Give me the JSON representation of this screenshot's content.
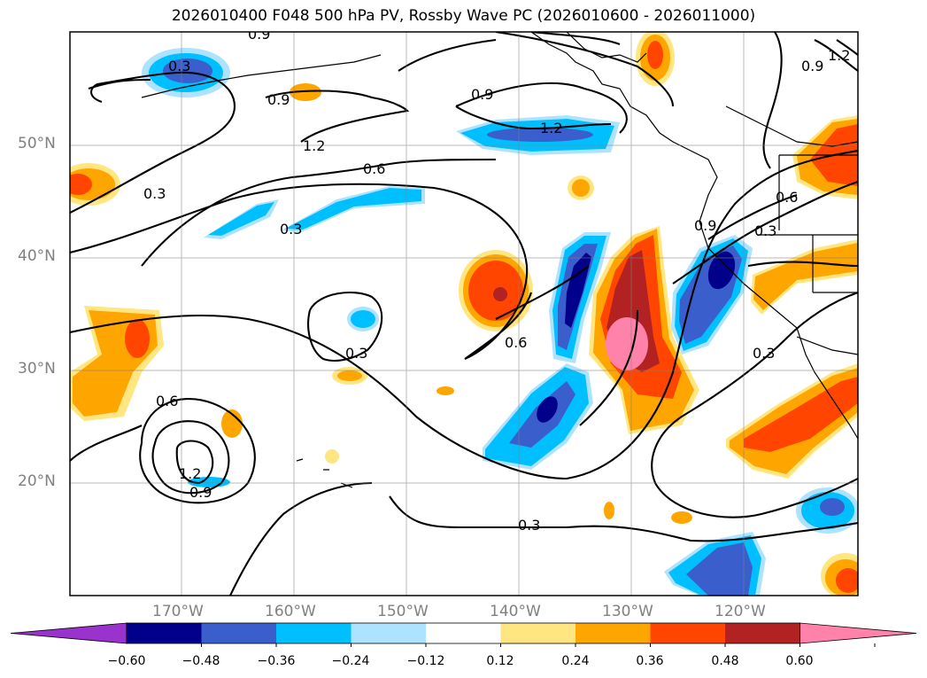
{
  "title": "2026010400 F048 500 hPa PV, Rossby Wave PC (2026010600 - 2026011000)",
  "lat_ticks": [
    "50°N",
    "40°N",
    "30°N",
    "20°N"
  ],
  "lon_ticks": [
    "170°W",
    "160°W",
    "150°W",
    "140°W",
    "130°W",
    "120°W"
  ],
  "contour_labels": [
    "0.9",
    "0.9",
    "1.2",
    "0.9",
    "1.2",
    "1.2",
    "0.9",
    "0.6",
    "0.3",
    "0.3",
    "0.6",
    "0.3",
    "0.9",
    "0.3",
    "0.3",
    "0.6",
    "0.3",
    "0.6",
    "1.2",
    "0.9",
    "0.3"
  ],
  "colorbar": {
    "tick_labels": [
      "−0.60",
      "−0.48",
      "−0.36",
      "−0.24",
      "−0.12",
      "0.12",
      "0.24",
      "0.36",
      "0.48",
      "0.60"
    ],
    "colors": [
      "#9a32cd",
      "#00008b",
      "#3a5fcd",
      "#00bfff",
      "#aee3ff",
      "#ffffff",
      "#ffe680",
      "#ffa500",
      "#ff4500",
      "#b22222",
      "#ff82ab"
    ]
  }
}
